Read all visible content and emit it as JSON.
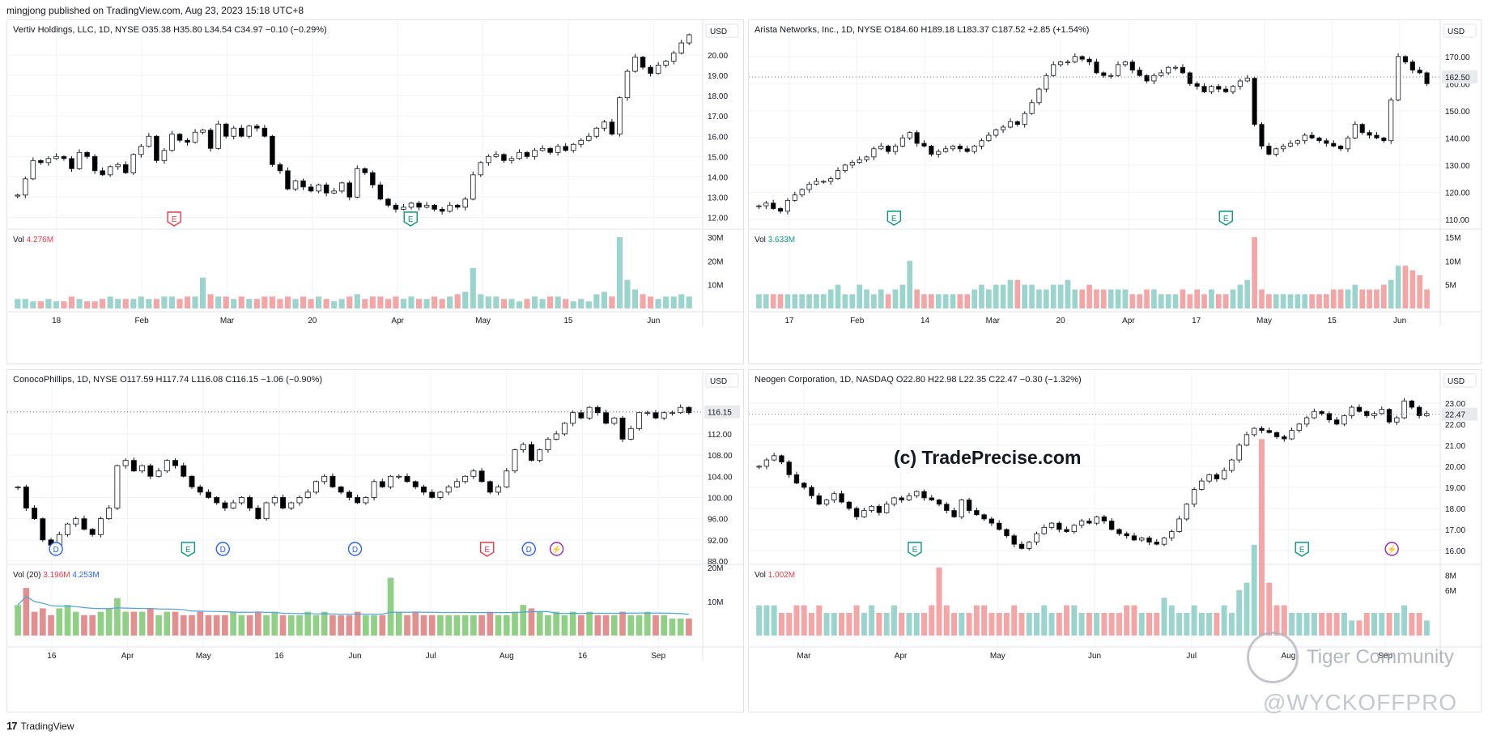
{
  "header": {
    "text": "mingjong published on TradingView.com, Aug 23, 2023 15:18 UTC+8"
  },
  "footer": {
    "brand": "TradingView"
  },
  "watermarks": {
    "trade": "(c) TradePrecise.com",
    "tiger": "Tiger Community",
    "wyckoff": "@WYCKOFFPRO"
  },
  "colors": {
    "up_body": "#ffffff",
    "down_body": "#000000",
    "wick": "#131722",
    "vol_up": "#9bd4cc",
    "vol_down": "#f4a5a5",
    "vol_up_green": "#8fcf86",
    "vol_down_red": "#e48f8f",
    "earnings_green": "#089981",
    "earnings_red": "#f23645",
    "dividend": "#2962ff",
    "split": "#9c27b0",
    "grid": "#f0f3fa",
    "axis": "#e0e3eb"
  },
  "chart_data": [
    {
      "type": "candlestick",
      "title": "Vertiv Holdings, LLC, 1D, NYSE",
      "ohlc_text": {
        "o": "O35.38",
        "h": "H35.80",
        "l": "L34.54",
        "c": "C34.97",
        "chg": "−0.10 (−0.29%)"
      },
      "currency": "USD",
      "price_label": "",
      "ylim": [
        11.5,
        21.0
      ],
      "yticks": [
        "20.00",
        "19.00",
        "18.00",
        "17.00",
        "16.00",
        "15.00",
        "14.00",
        "13.00",
        "12.00"
      ],
      "xticks": [
        "18",
        "Feb",
        "Mar",
        "20",
        "Apr",
        "May",
        "15",
        "Jun"
      ],
      "closes": [
        13.1,
        13.9,
        14.8,
        14.7,
        14.9,
        15.0,
        14.9,
        14.4,
        15.2,
        15.0,
        14.3,
        14.1,
        14.5,
        14.6,
        14.2,
        15.1,
        15.5,
        16.0,
        14.8,
        15.3,
        16.1,
        15.8,
        15.7,
        16.2,
        16.3,
        15.4,
        16.6,
        16.0,
        16.4,
        16.0,
        16.5,
        16.4,
        16.0,
        14.6,
        14.3,
        13.4,
        13.8,
        13.5,
        13.3,
        13.6,
        13.2,
        13.3,
        13.7,
        13.0,
        14.4,
        14.2,
        13.6,
        12.9,
        12.6,
        12.4,
        12.5,
        12.7,
        12.5,
        12.6,
        12.4,
        12.3,
        12.6,
        12.5,
        12.9,
        14.1,
        14.7,
        15.0,
        15.1,
        14.8,
        14.9,
        15.2,
        15.0,
        15.3,
        15.4,
        15.2,
        15.5,
        15.3,
        15.6,
        15.8,
        16.0,
        16.4,
        16.7,
        16.1,
        17.9,
        19.2,
        19.9,
        19.4,
        19.1,
        19.5,
        19.7,
        20.1,
        20.6,
        21.0
      ],
      "volumes": [
        4,
        4,
        3,
        3,
        4,
        3,
        3,
        5,
        4,
        3,
        3,
        4,
        5,
        4,
        4,
        4,
        5,
        4,
        4,
        5,
        5,
        4,
        5,
        5,
        13,
        6,
        5,
        5,
        4,
        5,
        4,
        4,
        5,
        5,
        4,
        5,
        4,
        5,
        4,
        5,
        4,
        3,
        4,
        5,
        6,
        4,
        5,
        5,
        4,
        5,
        4,
        5,
        4,
        4,
        5,
        4,
        5,
        6,
        7,
        17,
        6,
        5,
        5,
        4,
        4,
        3,
        4,
        5,
        4,
        5,
        5,
        4,
        3,
        4,
        3,
        6,
        7,
        5,
        30,
        12,
        8,
        6,
        5,
        4,
        5,
        5,
        6,
        5
      ],
      "vol_label": "Vol",
      "vol_value": "4.276M",
      "vol_ticks": [
        "30M",
        "20M",
        "10M"
      ],
      "vol_max": 32,
      "events": [
        {
          "type": "earnings-red",
          "text": "E",
          "x": 24
        },
        {
          "type": "earnings-green",
          "text": "E",
          "x": 58
        }
      ]
    },
    {
      "type": "candlestick",
      "title": "Arista Networks, Inc., 1D, NYSE",
      "ohlc_text": {
        "o": "O184.60",
        "h": "H189.18",
        "l": "L183.37",
        "c": "C187.52",
        "chg": "+2.85 (+1.54%)"
      },
      "currency": "USD",
      "price_label": "162.50",
      "ylim": [
        107,
        178
      ],
      "yticks": [
        "170.00",
        "160.00",
        "150.00",
        "140.00",
        "130.00",
        "120.00",
        "110.00"
      ],
      "xticks": [
        "17",
        "Feb",
        "14",
        "Mar",
        "20",
        "Apr",
        "17",
        "May",
        "15",
        "Jun"
      ],
      "closes": [
        115,
        116,
        114,
        113,
        117,
        119,
        121,
        123,
        124,
        124,
        125,
        128,
        130,
        131,
        132,
        133,
        136,
        137,
        135,
        137,
        140,
        142,
        138,
        137,
        134,
        135,
        136,
        137,
        136,
        135,
        137,
        139,
        141,
        143,
        144,
        146,
        145,
        149,
        153,
        158,
        163,
        167,
        168,
        168,
        170,
        169,
        168,
        164,
        163,
        163,
        167,
        168,
        165,
        163,
        161,
        163,
        164,
        166,
        166,
        164,
        160,
        159,
        157,
        159,
        158,
        157,
        159,
        161,
        162,
        145,
        137,
        134,
        136,
        137,
        138,
        139,
        141,
        140,
        139,
        138,
        137,
        136,
        140,
        145,
        142,
        141,
        140,
        139,
        154,
        170,
        168,
        165,
        164,
        160
      ],
      "volumes": [
        3,
        3,
        3,
        3,
        3,
        3,
        3,
        3,
        3,
        3,
        4,
        5,
        3,
        3,
        5,
        4,
        3,
        4,
        3,
        4,
        5,
        10,
        4,
        3,
        3,
        3,
        3,
        3,
        3,
        3,
        4,
        5,
        4,
        5,
        5,
        6,
        6,
        5,
        5,
        4,
        4,
        5,
        5,
        6,
        4,
        4,
        5,
        4,
        4,
        4,
        4,
        4,
        3,
        3,
        4,
        4,
        3,
        3,
        3,
        4,
        3,
        4,
        3,
        4,
        3,
        3,
        4,
        5,
        6,
        15,
        4,
        3,
        3,
        3,
        3,
        3,
        3,
        3,
        3,
        3,
        4,
        4,
        4,
        5,
        4,
        4,
        4,
        5,
        6,
        9,
        9,
        8,
        7,
        4
      ],
      "vol_label": "Vol",
      "vol_value": "3.633M",
      "vol_ticks": [
        "15M",
        "10M",
        "5M"
      ],
      "vol_max": 16,
      "events": [
        {
          "type": "earnings-green",
          "text": "E",
          "x": 21
        },
        {
          "type": "earnings-green",
          "text": "E",
          "x": 69
        }
      ]
    },
    {
      "type": "candlestick",
      "title": "ConocoPhillips, 1D, NYSE",
      "ohlc_text": {
        "o": "O117.59",
        "h": "H117.74",
        "l": "L116.08",
        "c": "C116.15",
        "chg": "−1.06 (−0.90%)"
      },
      "currency": "USD",
      "price_label": "116.15",
      "ylim": [
        88,
        121
      ],
      "yticks": [
        "116.00",
        "112.00",
        "108.00",
        "104.00",
        "100.00",
        "96.00",
        "92.00",
        "88.00"
      ],
      "xticks": [
        "16",
        "Apr",
        "May",
        "16",
        "Jun",
        "Jul",
        "Aug",
        "16",
        "Sep"
      ],
      "closes": [
        102,
        98,
        96,
        92,
        91,
        93,
        95,
        96,
        94,
        93,
        96,
        98,
        106,
        107,
        105,
        106,
        104,
        105,
        107,
        106,
        104,
        102,
        101,
        100,
        99,
        98,
        99,
        100,
        98,
        96,
        99,
        100,
        98,
        99,
        100,
        101,
        103,
        104,
        102,
        101,
        100,
        99,
        100,
        103,
        102,
        104,
        104,
        103,
        102,
        101,
        100,
        101,
        102,
        103,
        104,
        105,
        103,
        101,
        102,
        105,
        109,
        110,
        107,
        109,
        111,
        112,
        114,
        116,
        115,
        117,
        116,
        114,
        115,
        111,
        113,
        116,
        116,
        115,
        116,
        116,
        117,
        116
      ],
      "volumes": [
        9,
        14,
        7,
        8,
        6,
        8,
        9,
        7,
        6,
        6,
        7,
        8,
        11,
        7,
        7,
        7,
        8,
        6,
        7,
        7,
        6,
        6,
        7,
        6,
        6,
        6,
        7,
        6,
        6,
        7,
        6,
        7,
        6,
        6,
        6,
        7,
        6,
        7,
        6,
        6,
        6,
        7,
        6,
        6,
        6,
        17,
        7,
        6,
        7,
        6,
        6,
        6,
        6,
        6,
        6,
        6,
        6,
        7,
        6,
        6,
        7,
        9,
        8,
        7,
        6,
        7,
        6,
        7,
        6,
        7,
        6,
        6,
        6,
        7,
        6,
        6,
        7,
        6,
        6,
        5,
        5,
        5
      ],
      "vol_label": "Vol (20)",
      "vol_value": "3.196M",
      "vol_value2": "4.253M",
      "vol_ticks": [
        "20M",
        "10M"
      ],
      "vol_max": 20,
      "vol_style": "green-red",
      "events": [
        {
          "type": "dividend",
          "text": "D",
          "x": 7
        },
        {
          "type": "earnings-green",
          "text": "E",
          "x": 26
        },
        {
          "type": "dividend",
          "text": "D",
          "x": 31
        },
        {
          "type": "dividend",
          "text": "D",
          "x": 50
        },
        {
          "type": "earnings-red",
          "text": "E",
          "x": 69
        },
        {
          "type": "dividend",
          "text": "D",
          "x": 75
        },
        {
          "type": "split",
          "text": "⚡",
          "x": 79
        }
      ]
    },
    {
      "type": "candlestick",
      "title": "Neogen Corporation, 1D, NASDAQ",
      "ohlc_text": {
        "o": "O22.80",
        "h": "H22.98",
        "l": "L22.35",
        "c": "C22.47",
        "chg": "−0.30 (−1.32%)"
      },
      "currency": "USD",
      "price_label": "22.47",
      "ylim": [
        15.5,
        23.8
      ],
      "yticks": [
        "23.00",
        "22.00",
        "21.00",
        "20.00",
        "19.00",
        "18.00",
        "17.00",
        "16.00"
      ],
      "xticks": [
        "Mar",
        "Apr",
        "May",
        "Jun",
        "Jul",
        "Aug",
        "Sep"
      ],
      "closes": [
        20.0,
        20.3,
        20.5,
        20.2,
        19.6,
        19.2,
        19.0,
        18.6,
        18.2,
        18.4,
        18.7,
        18.3,
        18.0,
        17.6,
        17.9,
        18.1,
        17.8,
        18.2,
        18.5,
        18.4,
        18.6,
        18.8,
        18.5,
        18.4,
        18.2,
        17.9,
        17.6,
        18.4,
        17.9,
        17.7,
        17.5,
        17.3,
        17.0,
        16.7,
        16.3,
        16.1,
        16.4,
        16.8,
        17.1,
        17.3,
        17.0,
        16.9,
        17.2,
        17.4,
        17.3,
        17.6,
        17.4,
        17.0,
        16.8,
        16.7,
        16.5,
        16.6,
        16.4,
        16.3,
        16.6,
        16.9,
        17.5,
        18.2,
        18.9,
        19.3,
        19.6,
        19.4,
        19.8,
        20.3,
        21.0,
        21.5,
        21.8,
        21.7,
        21.6,
        21.4,
        21.3,
        21.7,
        22.0,
        22.3,
        22.6,
        22.5,
        22.2,
        22.0,
        22.4,
        22.8,
        22.6,
        22.4,
        22.5,
        22.7,
        22.1,
        22.3,
        23.1,
        22.8,
        22.4,
        22.5
      ],
      "volumes": [
        4,
        4,
        4,
        3,
        3,
        4,
        4,
        3,
        4,
        3,
        3,
        3,
        3,
        4,
        3,
        4,
        3,
        3,
        4,
        3,
        3,
        3,
        3,
        4,
        9,
        4,
        3,
        3,
        3,
        4,
        4,
        3,
        3,
        3,
        4,
        3,
        3,
        3,
        4,
        3,
        3,
        4,
        4,
        3,
        3,
        3,
        3,
        3,
        3,
        4,
        4,
        3,
        3,
        3,
        5,
        4,
        3,
        3,
        4,
        3,
        3,
        3,
        4,
        3,
        6,
        7,
        12,
        26,
        7,
        4,
        4,
        3,
        3,
        3,
        3,
        3,
        3,
        3,
        3,
        2,
        2,
        3,
        3,
        3,
        3,
        3,
        4,
        3,
        3,
        2
      ],
      "vol_label": "Vol",
      "vol_value": "1.002M",
      "vol_ticks": [
        "8M",
        "6M"
      ],
      "vol_max": 9,
      "events": [
        {
          "type": "earnings-green",
          "text": "E",
          "x": 24
        },
        {
          "type": "earnings-green",
          "text": "E",
          "x": 80
        },
        {
          "type": "split",
          "text": "⚡",
          "x": 93
        }
      ]
    }
  ]
}
